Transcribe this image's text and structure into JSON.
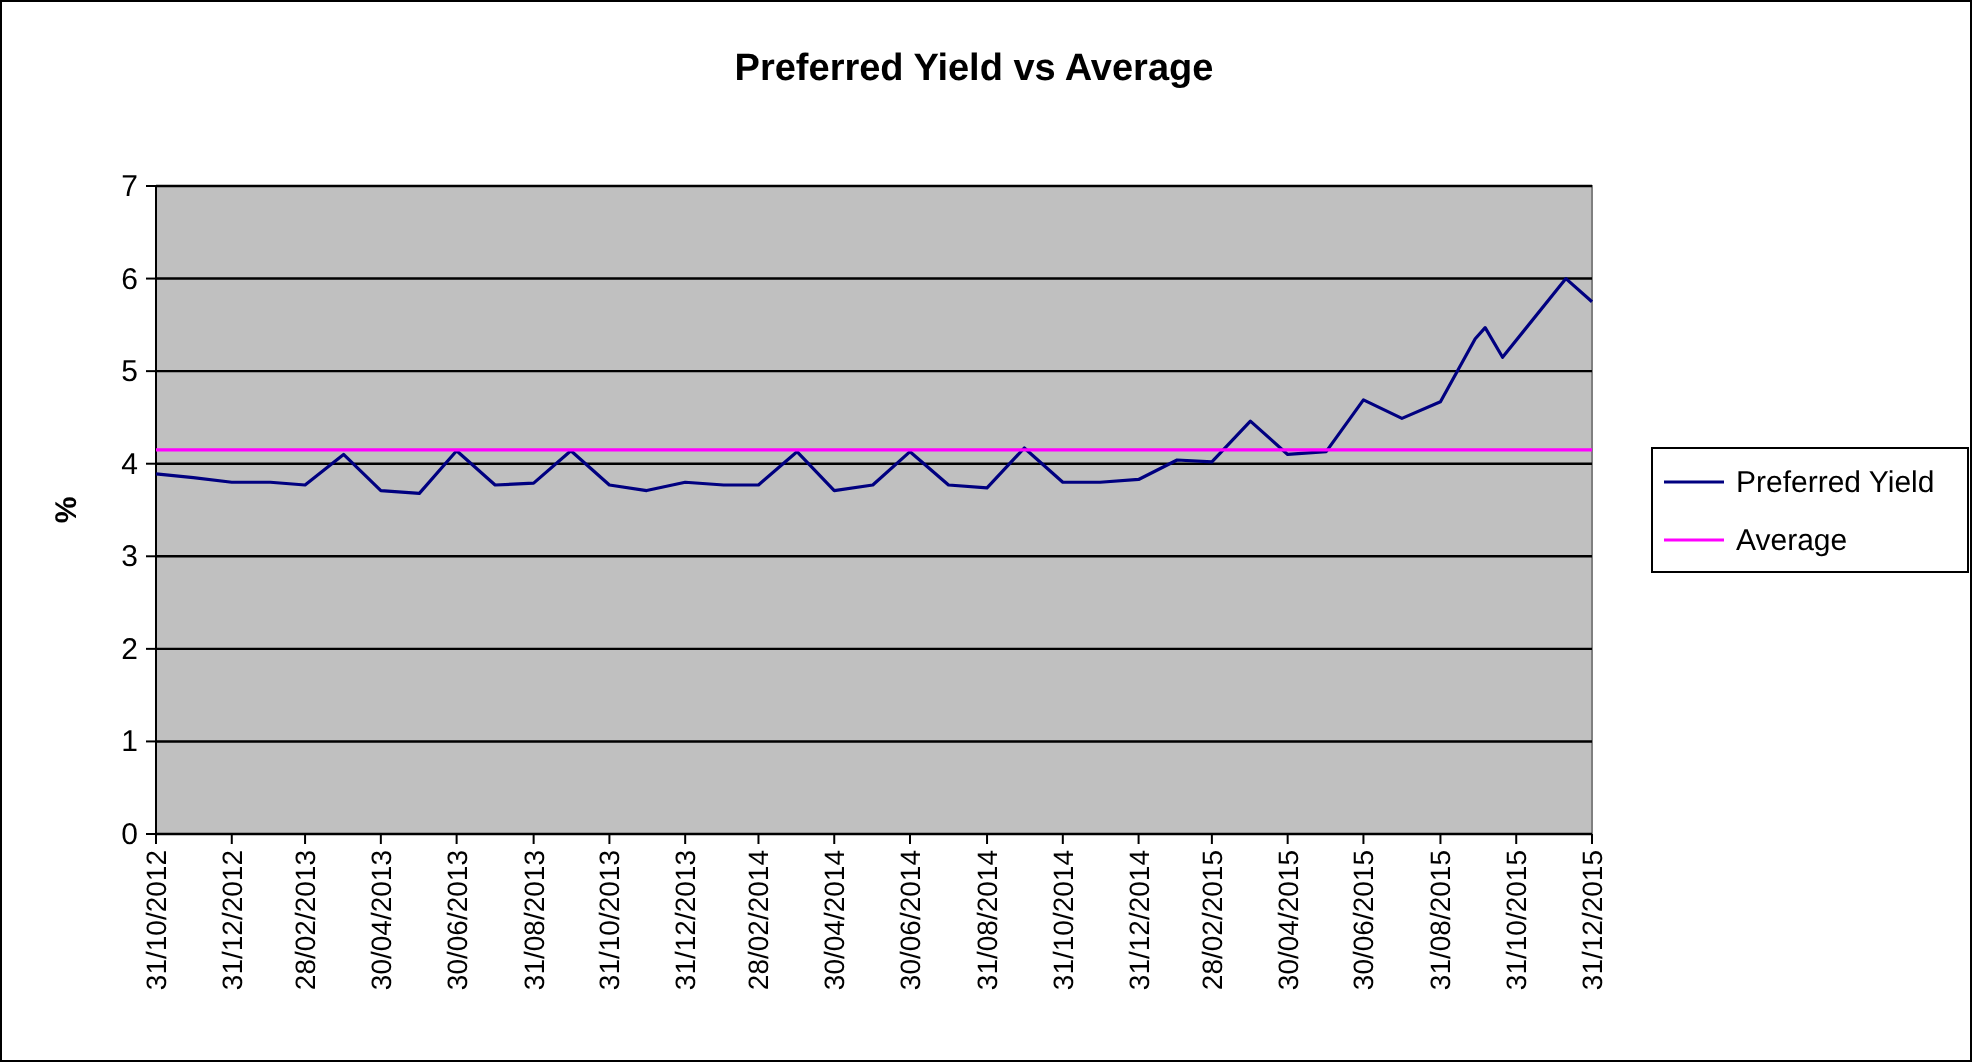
{
  "chart_data": {
    "type": "line",
    "title": "Preferred Yield vs Average",
    "ylabel": "%",
    "ylim": [
      0,
      7
    ],
    "yticks": [
      0,
      1,
      2,
      3,
      4,
      5,
      6,
      7
    ],
    "xlim": [
      "2012-10-31",
      "2015-12-31"
    ],
    "xticks": [
      {
        "value": "2012-10-31",
        "label": "31/10/2012"
      },
      {
        "value": "2012-12-31",
        "label": "31/12/2012"
      },
      {
        "value": "2013-02-28",
        "label": "28/02/2013"
      },
      {
        "value": "2013-04-30",
        "label": "30/04/2013"
      },
      {
        "value": "2013-06-30",
        "label": "30/06/2013"
      },
      {
        "value": "2013-08-31",
        "label": "31/08/2013"
      },
      {
        "value": "2013-10-31",
        "label": "31/10/2013"
      },
      {
        "value": "2013-12-31",
        "label": "31/12/2013"
      },
      {
        "value": "2014-02-28",
        "label": "28/02/2014"
      },
      {
        "value": "2014-04-30",
        "label": "30/04/2014"
      },
      {
        "value": "2014-06-30",
        "label": "30/06/2014"
      },
      {
        "value": "2014-08-31",
        "label": "31/08/2014"
      },
      {
        "value": "2014-10-31",
        "label": "31/10/2014"
      },
      {
        "value": "2014-12-31",
        "label": "31/12/2014"
      },
      {
        "value": "2015-02-28",
        "label": "28/02/2015"
      },
      {
        "value": "2015-04-30",
        "label": "30/04/2015"
      },
      {
        "value": "2015-06-30",
        "label": "30/06/2015"
      },
      {
        "value": "2015-08-31",
        "label": "31/08/2015"
      },
      {
        "value": "2015-10-31",
        "label": "31/10/2015"
      },
      {
        "value": "2015-12-31",
        "label": "31/12/2015"
      }
    ],
    "grid": "y",
    "legend": "right",
    "line_style": "solid",
    "series": [
      {
        "name": "Preferred Yield",
        "color": "#000080",
        "x": [
          "2012-10-31",
          "2012-11-30",
          "2012-12-31",
          "2013-01-31",
          "2013-02-28",
          "2013-03-31",
          "2013-04-30",
          "2013-05-31",
          "2013-06-30",
          "2013-07-31",
          "2013-08-31",
          "2013-09-30",
          "2013-10-31",
          "2013-11-30",
          "2013-12-31",
          "2014-01-31",
          "2014-02-28",
          "2014-03-31",
          "2014-04-30",
          "2014-05-31",
          "2014-06-30",
          "2014-07-31",
          "2014-08-31",
          "2014-09-30",
          "2014-10-31",
          "2014-11-30",
          "2014-12-31",
          "2015-01-31",
          "2015-02-28",
          "2015-03-31",
          "2015-04-30",
          "2015-05-31",
          "2015-06-30",
          "2015-07-31",
          "2015-08-31",
          "2015-09-28",
          "2015-10-06",
          "2015-10-20",
          "2015-12-10",
          "2015-12-31"
        ],
        "values": [
          3.89,
          3.85,
          3.8,
          3.8,
          3.77,
          4.1,
          3.71,
          3.68,
          4.14,
          3.77,
          3.79,
          4.14,
          3.77,
          3.71,
          3.8,
          3.77,
          3.77,
          4.13,
          3.71,
          3.77,
          4.13,
          3.77,
          3.74,
          4.17,
          3.8,
          3.8,
          3.83,
          4.04,
          4.02,
          4.46,
          4.1,
          4.13,
          4.69,
          4.49,
          4.67,
          5.35,
          5.47,
          5.15,
          6.0,
          5.75
        ]
      },
      {
        "name": "Average",
        "color": "#ff00ff",
        "x": [
          "2012-10-31",
          "2015-12-31"
        ],
        "values": [
          4.15,
          4.15
        ]
      }
    ]
  }
}
